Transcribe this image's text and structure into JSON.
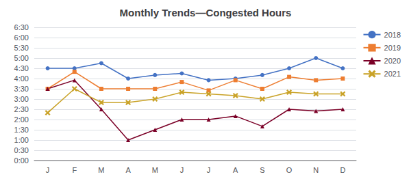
{
  "chart_data": {
    "type": "line",
    "title": "Monthly Trends—Congested Hours",
    "categories": [
      "J",
      "F",
      "M",
      "A",
      "M",
      "J",
      "J",
      "A",
      "S",
      "O",
      "N",
      "D"
    ],
    "series": [
      {
        "name": "2018",
        "color": "#4472C4",
        "marker": "circle",
        "values": [
          4.5,
          4.5,
          4.75,
          4.0,
          4.17,
          4.25,
          3.92,
          4.0,
          4.17,
          4.5,
          5.0,
          4.5
        ]
      },
      {
        "name": "2019",
        "color": "#ED7D31",
        "marker": "square",
        "values": [
          3.5,
          4.33,
          3.5,
          3.5,
          3.5,
          3.83,
          3.42,
          3.92,
          3.5,
          4.08,
          3.92,
          4.0
        ]
      },
      {
        "name": "2020",
        "color": "#7B0027",
        "marker": "triangle",
        "values": [
          3.5,
          3.92,
          2.5,
          1.0,
          1.5,
          2.0,
          2.0,
          2.17,
          1.67,
          2.5,
          2.42,
          2.5
        ]
      },
      {
        "name": "2021",
        "color": "#C9A227",
        "marker": "x",
        "values": [
          2.33,
          3.5,
          2.83,
          2.83,
          3.0,
          3.33,
          3.25,
          3.17,
          3.0,
          3.33,
          3.25,
          3.25
        ]
      }
    ],
    "ylim": [
      0,
      6.5
    ],
    "yticks": [
      {
        "value": 0,
        "label": "0:00"
      },
      {
        "value": 0.5,
        "label": "0:30"
      },
      {
        "value": 1,
        "label": "1:00"
      },
      {
        "value": 1.5,
        "label": "1:30"
      },
      {
        "value": 2,
        "label": "2:00"
      },
      {
        "value": 2.5,
        "label": "2:30"
      },
      {
        "value": 3,
        "label": "3:00"
      },
      {
        "value": 3.5,
        "label": "3:30"
      },
      {
        "value": 4,
        "label": "4:00"
      },
      {
        "value": 4.5,
        "label": "4:30"
      },
      {
        "value": 5,
        "label": "5:00"
      },
      {
        "value": 5.5,
        "label": "5:30"
      },
      {
        "value": 6,
        "label": "6:00"
      },
      {
        "value": 6.5,
        "label": "6:30"
      }
    ],
    "grid": true,
    "legend": "right"
  }
}
